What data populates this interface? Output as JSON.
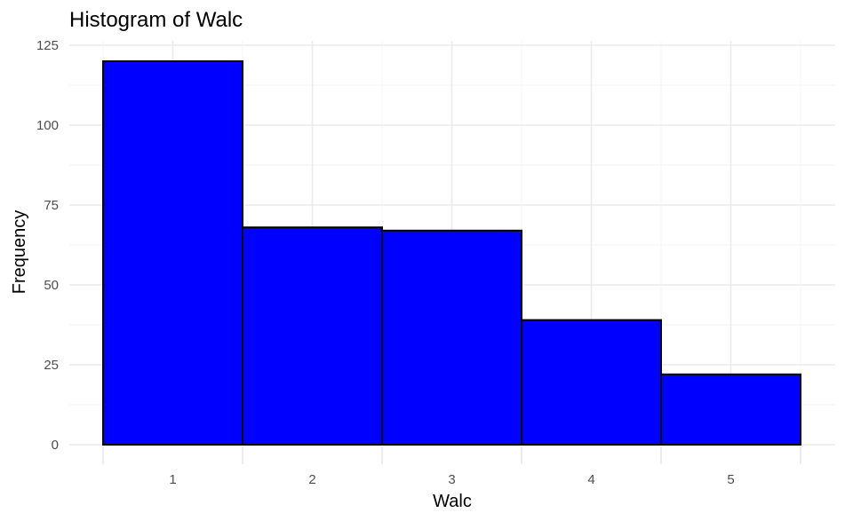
{
  "chart_data": {
    "type": "bar",
    "title": "Histogram of Walc",
    "xlabel": "Walc",
    "ylabel": "Frequency",
    "categories": [
      "1",
      "2",
      "3",
      "4",
      "5"
    ],
    "values": [
      120,
      68,
      67,
      39,
      22
    ],
    "ylim": [
      0,
      125
    ],
    "yticks": [
      "0",
      "25",
      "50",
      "75",
      "100",
      "125"
    ],
    "xlim": [
      0.5,
      5.5
    ],
    "grid": true,
    "bar_fill": "#0000ff",
    "bar_outline": "#000000"
  }
}
